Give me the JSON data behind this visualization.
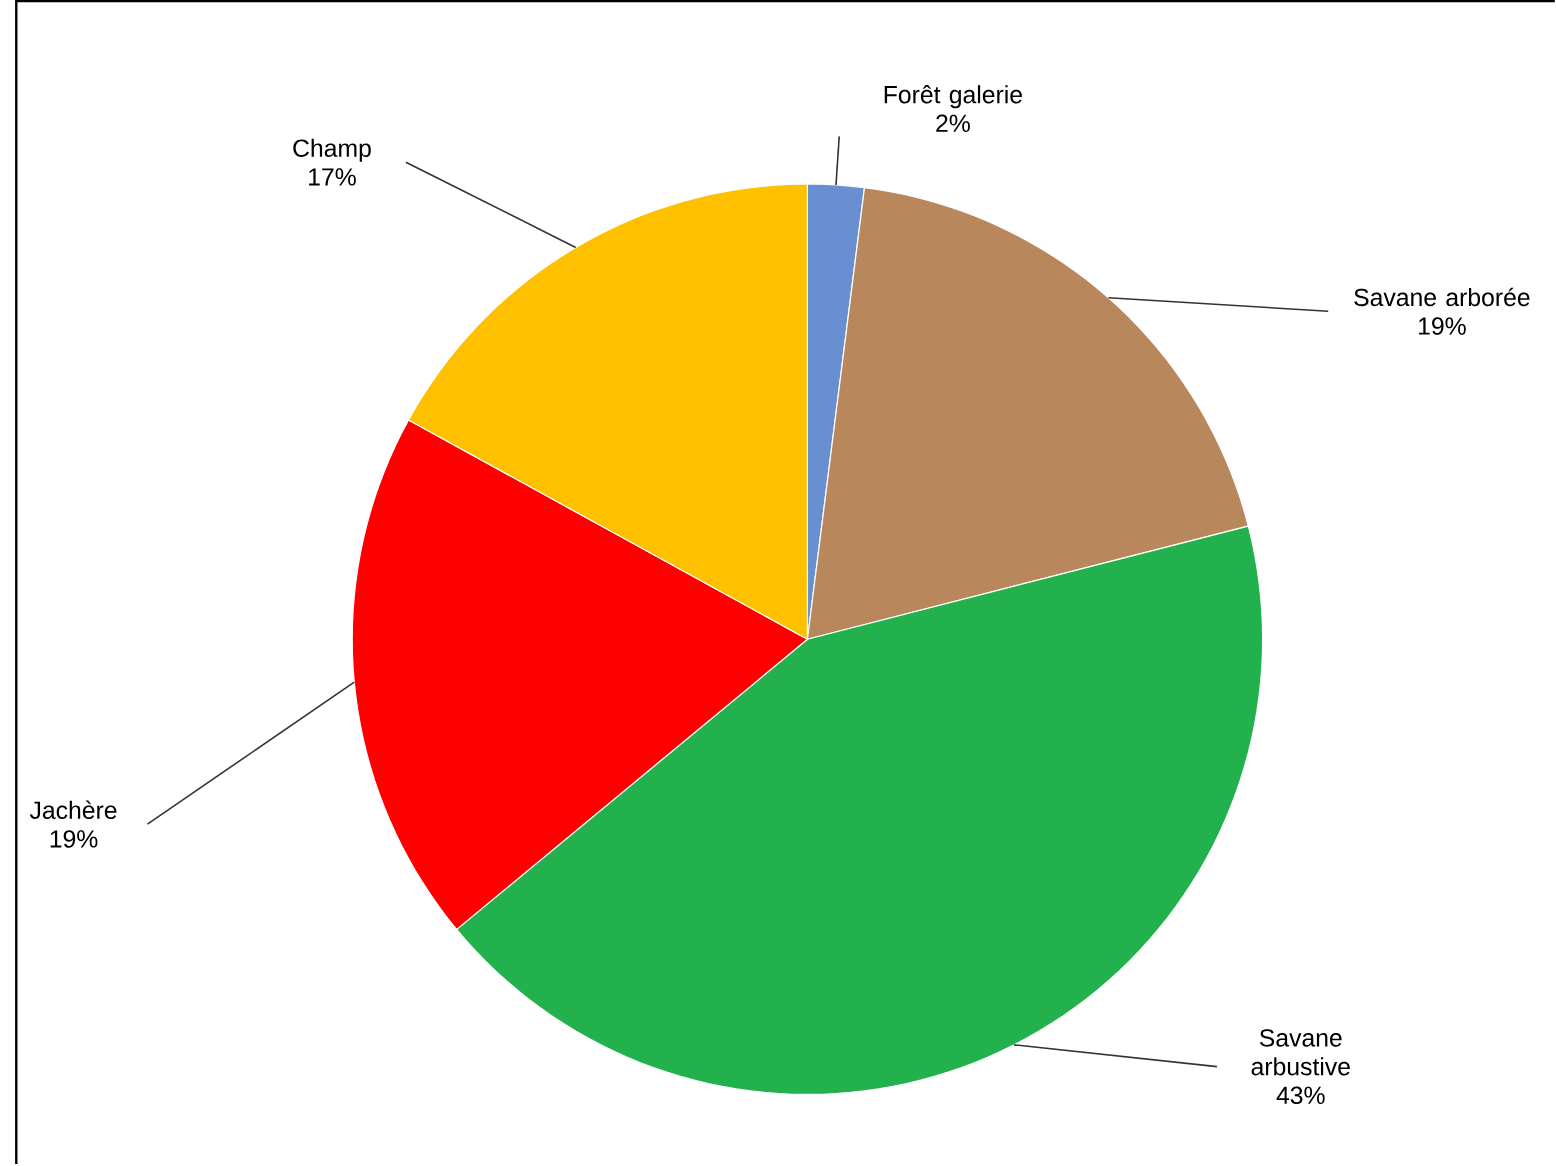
{
  "chart_data": {
    "type": "pie",
    "categories": [
      "Forêt galerie",
      "Savane arborée",
      "Savane arbustive",
      "Jachère",
      "Champ"
    ],
    "values": [
      2,
      19,
      43,
      19,
      17
    ],
    "value_labels": [
      "2%",
      "19%",
      "43%",
      "19%",
      "17%"
    ],
    "colors": [
      "#6a8fd0",
      "#b8875c",
      "#22b14c",
      "#ff0000",
      "#ffc000"
    ]
  }
}
